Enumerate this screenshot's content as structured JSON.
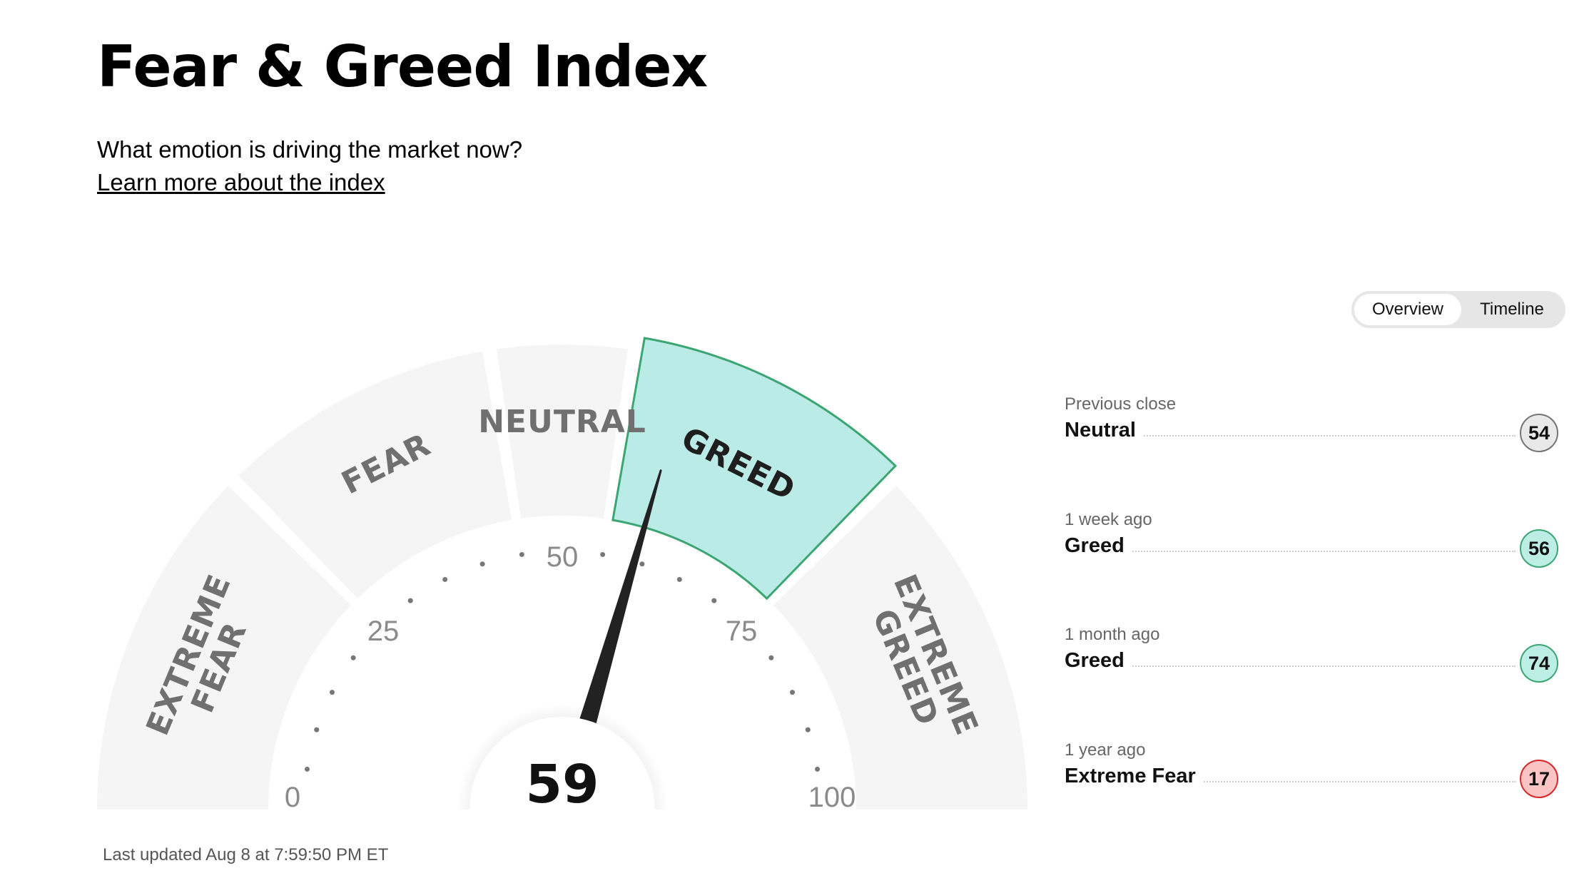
{
  "header": {
    "title": "Fear & Greed Index",
    "subtitle": "What emotion is driving the market now?",
    "learn_link": "Learn more about the index"
  },
  "view_toggle": {
    "options": [
      "Overview",
      "Timeline"
    ],
    "selected": "Overview"
  },
  "gauge": {
    "score": 59,
    "min": 0,
    "max": 100,
    "current_rating": "Greed",
    "tick_labels": [
      "0",
      "25",
      "50",
      "75",
      "100"
    ],
    "segments": [
      {
        "label_lines": [
          "EXTREME",
          "FEAR"
        ],
        "from": 0,
        "to": 25
      },
      {
        "label_lines": [
          "FEAR"
        ],
        "from": 25,
        "to": 45
      },
      {
        "label_lines": [
          "NEUTRAL"
        ],
        "from": 45,
        "to": 55
      },
      {
        "label_lines": [
          "GREED"
        ],
        "from": 55,
        "to": 75
      },
      {
        "label_lines": [
          "EXTREME",
          "GREED"
        ],
        "from": 75,
        "to": 100
      }
    ],
    "colors": {
      "segment_bg": "#f5f5f5",
      "active_fill": "#bbebe6",
      "active_stroke": "#3ca672",
      "needle": "#222222"
    }
  },
  "last_updated": "Last updated Aug 8 at 7:59:50 PM ET",
  "history": [
    {
      "when": "Previous close",
      "label": "Neutral",
      "value": "54",
      "badge_bg": "#e9e9e9",
      "badge_border": "#757575"
    },
    {
      "when": "1 week ago",
      "label": "Greed",
      "value": "56",
      "badge_bg": "#bdeee6",
      "badge_border": "#3ca672"
    },
    {
      "when": "1 month ago",
      "label": "Greed",
      "value": "74",
      "badge_bg": "#bdeee6",
      "badge_border": "#3ca672"
    },
    {
      "when": "1 year ago",
      "label": "Extreme Fear",
      "value": "17",
      "badge_bg": "#fbc4c4",
      "badge_border": "#d62828"
    }
  ]
}
